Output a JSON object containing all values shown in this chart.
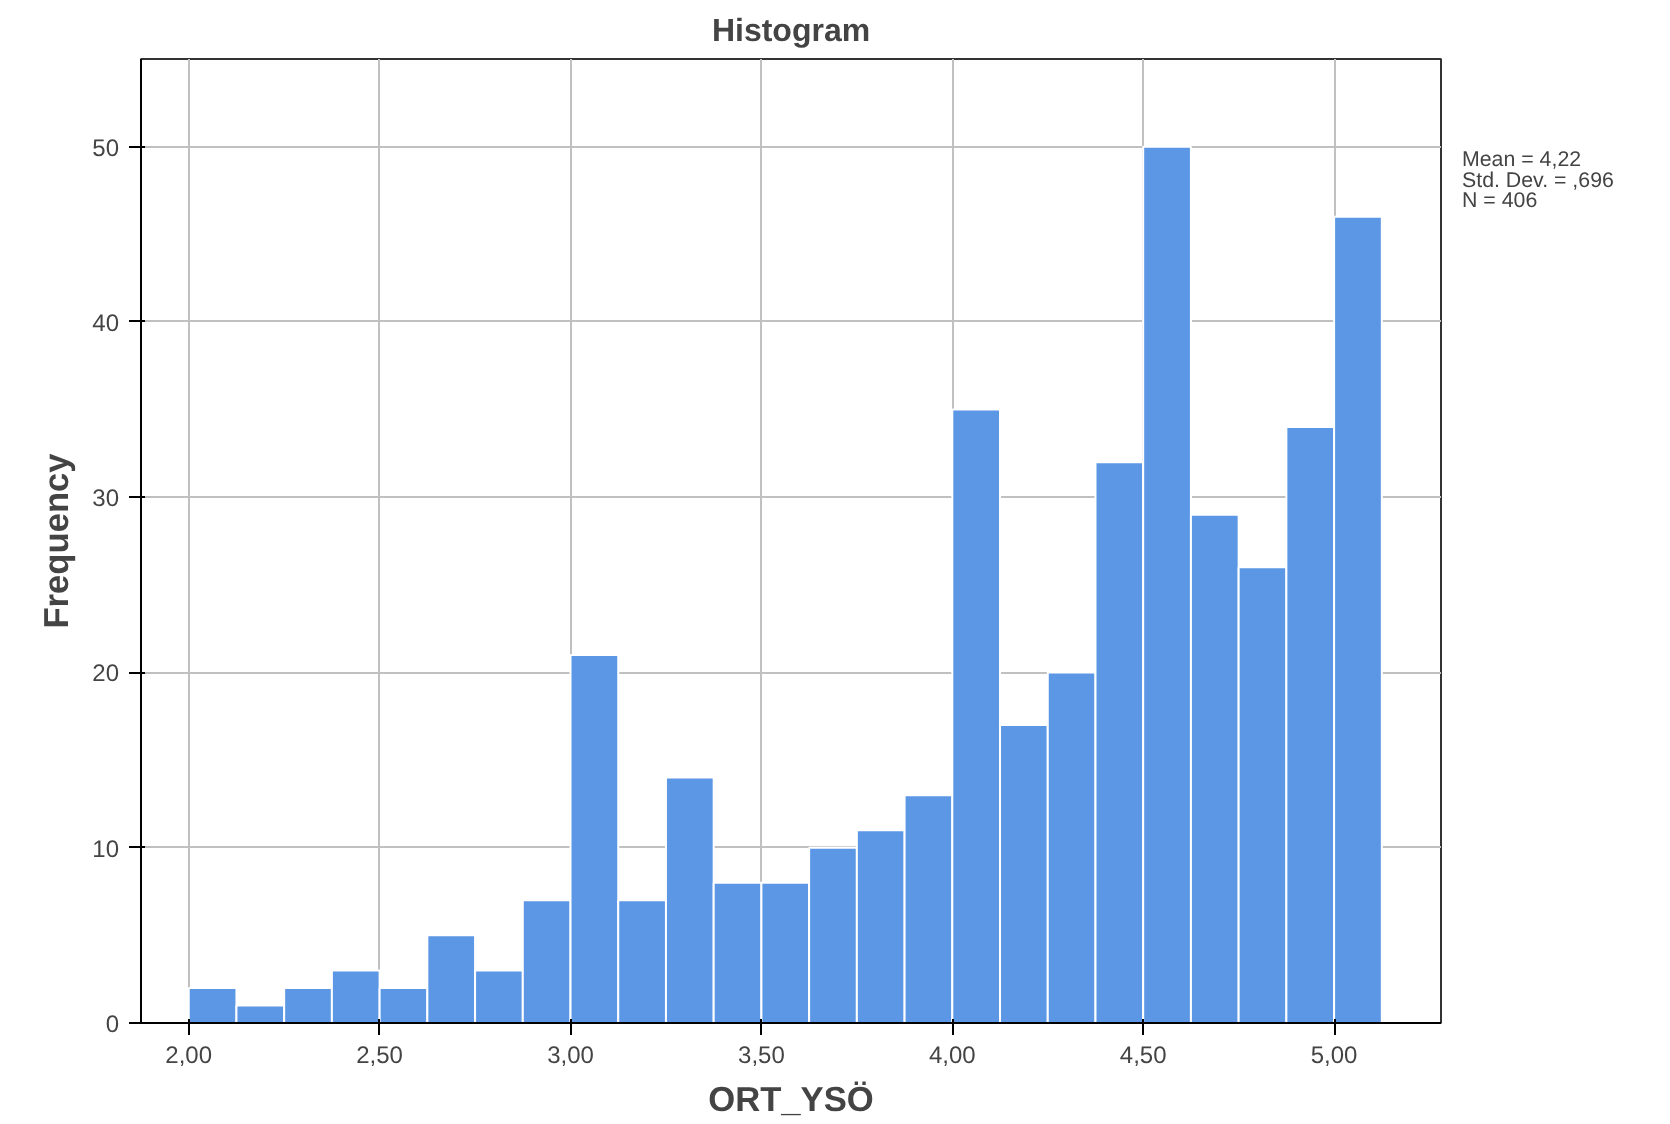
{
  "chart_data": {
    "type": "histogram",
    "title": "Histogram",
    "xlabel": "ORT_YSÖ",
    "ylabel": "Frequency",
    "bins": [
      2.0,
      2.125,
      2.25,
      2.375,
      2.5,
      2.625,
      2.75,
      2.875,
      3.0,
      3.125,
      3.25,
      3.375,
      3.5,
      3.625,
      3.75,
      3.875,
      4.0,
      4.125,
      4.25,
      4.375,
      4.5,
      4.625,
      4.75,
      4.875,
      5.0,
      5.125
    ],
    "values": [
      2,
      1,
      2,
      3,
      2,
      5,
      3,
      7,
      21,
      7,
      14,
      8,
      8,
      10,
      11,
      13,
      35,
      17,
      20,
      32,
      50,
      29,
      26,
      34,
      46
    ],
    "color": "#5b97e5",
    "xlim": [
      1.875,
      5.28
    ],
    "ylim": [
      0,
      55
    ],
    "xticks": [
      {
        "value": 2.0,
        "label": "2,00"
      },
      {
        "value": 2.5,
        "label": "2,50"
      },
      {
        "value": 3.0,
        "label": "3,00"
      },
      {
        "value": 3.5,
        "label": "3,50"
      },
      {
        "value": 4.0,
        "label": "4,00"
      },
      {
        "value": 4.5,
        "label": "4,50"
      },
      {
        "value": 5.0,
        "label": "5,00"
      }
    ],
    "yticks": [
      0,
      10,
      20,
      30,
      40,
      50
    ],
    "grid": true,
    "annotations": [
      "Mean = 4,22",
      "Std. Dev. = ,696",
      "N = 406"
    ]
  }
}
